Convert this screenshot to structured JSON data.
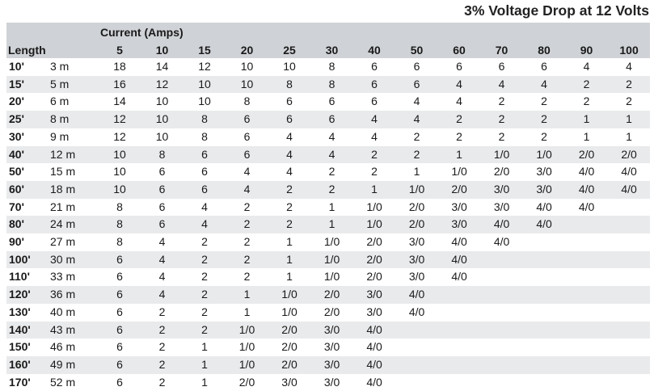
{
  "title": "3% Voltage Drop at 12 Volts",
  "header": {
    "current_label": "Current (Amps)",
    "length_label": "Length",
    "amps": [
      "5",
      "10",
      "15",
      "20",
      "25",
      "30",
      "40",
      "50",
      "60",
      "70",
      "80",
      "90",
      "100"
    ]
  },
  "rows": [
    {
      "ft": "10'",
      "m": "3 m",
      "v": [
        "18",
        "14",
        "12",
        "10",
        "10",
        "8",
        "6",
        "6",
        "6",
        "6",
        "6",
        "4",
        "4"
      ]
    },
    {
      "ft": "15'",
      "m": "5 m",
      "v": [
        "16",
        "12",
        "10",
        "10",
        "8",
        "8",
        "6",
        "6",
        "4",
        "4",
        "4",
        "2",
        "2"
      ]
    },
    {
      "ft": "20'",
      "m": "6 m",
      "v": [
        "14",
        "10",
        "10",
        "8",
        "6",
        "6",
        "6",
        "4",
        "4",
        "2",
        "2",
        "2",
        "2"
      ]
    },
    {
      "ft": "25'",
      "m": "8 m",
      "v": [
        "12",
        "10",
        "8",
        "6",
        "6",
        "6",
        "4",
        "4",
        "2",
        "2",
        "2",
        "1",
        "1"
      ]
    },
    {
      "ft": "30'",
      "m": "9 m",
      "v": [
        "12",
        "10",
        "8",
        "6",
        "4",
        "4",
        "4",
        "2",
        "2",
        "2",
        "2",
        "1",
        "1"
      ]
    },
    {
      "ft": "40'",
      "m": "12 m",
      "v": [
        "10",
        "8",
        "6",
        "6",
        "4",
        "4",
        "2",
        "2",
        "1",
        "1/0",
        "1/0",
        "2/0",
        "2/0"
      ]
    },
    {
      "ft": "50'",
      "m": "15 m",
      "v": [
        "10",
        "6",
        "6",
        "4",
        "4",
        "2",
        "2",
        "1",
        "1/0",
        "2/0",
        "3/0",
        "4/0",
        "4/0"
      ]
    },
    {
      "ft": "60'",
      "m": "18 m",
      "v": [
        "10",
        "6",
        "6",
        "4",
        "2",
        "2",
        "1",
        "1/0",
        "2/0",
        "3/0",
        "3/0",
        "4/0",
        "4/0"
      ]
    },
    {
      "ft": "70'",
      "m": "21 m",
      "v": [
        "8",
        "6",
        "4",
        "2",
        "2",
        "1",
        "1/0",
        "2/0",
        "3/0",
        "3/0",
        "4/0",
        "4/0",
        ""
      ]
    },
    {
      "ft": "80'",
      "m": "24 m",
      "v": [
        "8",
        "6",
        "4",
        "2",
        "2",
        "1",
        "1/0",
        "2/0",
        "3/0",
        "4/0",
        "4/0",
        "",
        ""
      ]
    },
    {
      "ft": "90'",
      "m": "27 m",
      "v": [
        "8",
        "4",
        "2",
        "2",
        "1",
        "1/0",
        "2/0",
        "3/0",
        "4/0",
        "4/0",
        "",
        "",
        ""
      ]
    },
    {
      "ft": "100'",
      "m": "30 m",
      "v": [
        "6",
        "4",
        "2",
        "2",
        "1",
        "1/0",
        "2/0",
        "3/0",
        "4/0",
        "",
        "",
        "",
        ""
      ]
    },
    {
      "ft": "110'",
      "m": "33 m",
      "v": [
        "6",
        "4",
        "2",
        "2",
        "1",
        "1/0",
        "2/0",
        "3/0",
        "4/0",
        "",
        "",
        "",
        ""
      ]
    },
    {
      "ft": "120'",
      "m": "36 m",
      "v": [
        "6",
        "4",
        "2",
        "1",
        "1/0",
        "2/0",
        "3/0",
        "4/0",
        "",
        "",
        "",
        "",
        ""
      ]
    },
    {
      "ft": "130'",
      "m": "40 m",
      "v": [
        "6",
        "2",
        "2",
        "1",
        "1/0",
        "2/0",
        "3/0",
        "4/0",
        "",
        "",
        "",
        "",
        ""
      ]
    },
    {
      "ft": "140'",
      "m": "43 m",
      "v": [
        "6",
        "2",
        "2",
        "1/0",
        "2/0",
        "3/0",
        "4/0",
        "",
        "",
        "",
        "",
        "",
        ""
      ]
    },
    {
      "ft": "150'",
      "m": "46 m",
      "v": [
        "6",
        "2",
        "1",
        "1/0",
        "2/0",
        "3/0",
        "4/0",
        "",
        "",
        "",
        "",
        "",
        ""
      ]
    },
    {
      "ft": "160'",
      "m": "49 m",
      "v": [
        "6",
        "2",
        "1",
        "1/0",
        "2/0",
        "3/0",
        "4/0",
        "",
        "",
        "",
        "",
        "",
        ""
      ]
    },
    {
      "ft": "170'",
      "m": "52 m",
      "v": [
        "6",
        "2",
        "1",
        "2/0",
        "3/0",
        "3/0",
        "4/0",
        "",
        "",
        "",
        "",
        "",
        ""
      ]
    }
  ]
}
